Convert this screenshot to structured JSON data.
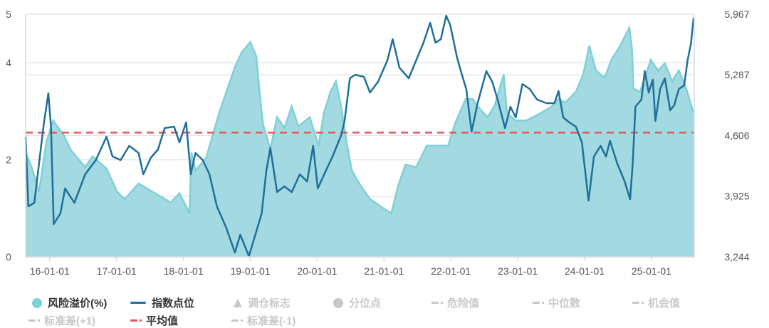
{
  "chart_data": {
    "type": "area+line",
    "x_unit": "decimal year",
    "x_tick_labels": [
      "16-01-01",
      "17-01-01",
      "18-01-01",
      "19-01-01",
      "20-01-01",
      "21-01-01",
      "22-01-01",
      "23-01-01",
      "24-01-01",
      "25-01-01"
    ],
    "x_range": [
      2015.64,
      2025.64
    ],
    "left_axis": {
      "ticks": [
        "0",
        "2",
        "4",
        "5"
      ],
      "range": [
        0,
        5
      ]
    },
    "right_axis": {
      "ticks": [
        "3,244",
        "3,925",
        "4,606",
        "5,287",
        "5,967"
      ],
      "range": [
        3244,
        5967
      ]
    },
    "grid": true,
    "colors": {
      "premium_fill": "#a3d9e0",
      "premium_line": "#7fd0d9",
      "index_line": "#1f6f9b",
      "mean_line": "#e05a5a",
      "inactive": "#c8c8c8"
    },
    "mean_value": 2.56,
    "series": [
      {
        "name": "风险溢价(%)",
        "axis": "left",
        "type": "area",
        "x": [
          2015.64,
          2015.73,
          2015.84,
          2015.95,
          2016.05,
          2016.21,
          2016.32,
          2016.53,
          2016.64,
          2016.85,
          2017.01,
          2017.12,
          2017.33,
          2017.54,
          2017.81,
          2017.94,
          2018.04,
          2018.09,
          2018.12,
          2018.18,
          2018.34,
          2018.47,
          2018.55,
          2018.66,
          2018.77,
          2018.87,
          2019.0,
          2019.09,
          2019.14,
          2019.19,
          2019.3,
          2019.4,
          2019.51,
          2019.62,
          2019.72,
          2019.89,
          2020.02,
          2020.1,
          2020.2,
          2020.28,
          2020.36,
          2020.44,
          2020.52,
          2020.63,
          2020.79,
          2020.98,
          2021.11,
          2021.21,
          2021.32,
          2021.48,
          2021.64,
          2021.8,
          2021.96,
          2022.06,
          2022.22,
          2022.33,
          2022.4,
          2022.55,
          2022.65,
          2022.79,
          2022.84,
          2022.97,
          2023.13,
          2023.34,
          2023.51,
          2023.61,
          2023.71,
          2023.87,
          2023.98,
          2024.07,
          2024.17,
          2024.3,
          2024.4,
          2024.53,
          2024.67,
          2024.71,
          2024.73,
          2024.83,
          2024.99,
          2025.1,
          2025.2,
          2025.31,
          2025.41,
          2025.52,
          2025.63
        ],
        "values": [
          2.15,
          1.85,
          1.34,
          2.37,
          2.81,
          2.51,
          2.19,
          1.85,
          2.07,
          1.82,
          1.34,
          1.19,
          1.51,
          1.34,
          1.12,
          1.31,
          1.04,
          0.9,
          2.15,
          1.78,
          2.04,
          2.66,
          3.03,
          3.47,
          3.91,
          4.21,
          4.43,
          4.13,
          3.4,
          2.74,
          2.22,
          2.88,
          2.66,
          3.1,
          2.69,
          2.88,
          2.29,
          2.96,
          3.4,
          3.62,
          3.1,
          2.37,
          1.78,
          1.51,
          1.19,
          1.01,
          0.9,
          1.46,
          1.9,
          1.85,
          2.29,
          2.29,
          2.29,
          2.74,
          3.25,
          3.25,
          3.1,
          2.88,
          3.1,
          3.76,
          2.96,
          2.81,
          2.81,
          2.96,
          3.1,
          3.25,
          3.18,
          3.4,
          3.76,
          4.35,
          3.84,
          3.69,
          4.06,
          4.35,
          4.72,
          4.28,
          3.47,
          3.4,
          4.06,
          3.84,
          3.99,
          3.62,
          3.84,
          3.47,
          2.96
        ]
      },
      {
        "name": "指数点位",
        "axis": "right",
        "type": "line",
        "x": [
          2015.64,
          2015.68,
          2015.77,
          2015.84,
          2015.91,
          2015.98,
          2016.02,
          2016.06,
          2016.16,
          2016.23,
          2016.37,
          2016.53,
          2016.69,
          2016.85,
          2016.94,
          2017.06,
          2017.19,
          2017.33,
          2017.4,
          2017.51,
          2017.62,
          2017.72,
          2017.86,
          2017.94,
          2018.04,
          2018.11,
          2018.18,
          2018.29,
          2018.39,
          2018.5,
          2018.64,
          2018.77,
          2018.85,
          2018.98,
          2019.06,
          2019.17,
          2019.24,
          2019.3,
          2019.4,
          2019.51,
          2019.62,
          2019.74,
          2019.85,
          2019.94,
          2020.01,
          2020.13,
          2020.23,
          2020.36,
          2020.41,
          2020.49,
          2020.57,
          2020.7,
          2020.79,
          2020.91,
          2021.05,
          2021.13,
          2021.18,
          2021.23,
          2021.37,
          2021.48,
          2021.59,
          2021.69,
          2021.77,
          2021.85,
          2021.93,
          2021.99,
          2022.09,
          2022.15,
          2022.23,
          2022.31,
          2022.4,
          2022.53,
          2022.62,
          2022.7,
          2022.81,
          2022.89,
          2022.97,
          2023.07,
          2023.18,
          2023.29,
          2023.43,
          2023.55,
          2023.61,
          2023.68,
          2023.77,
          2023.87,
          2023.96,
          2024.06,
          2024.14,
          2024.24,
          2024.32,
          2024.38,
          2024.49,
          2024.6,
          2024.68,
          2024.72,
          2024.76,
          2024.85,
          2024.9,
          2024.96,
          2025.02,
          2025.06,
          2025.13,
          2025.2,
          2025.28,
          2025.34,
          2025.41,
          2025.49,
          2025.54,
          2025.59,
          2025.63
        ],
        "values": [
          4593,
          3811,
          3851,
          4290,
          4729,
          5081,
          4689,
          3611,
          3731,
          4011,
          3851,
          4170,
          4330,
          4593,
          4370,
          4330,
          4490,
          4410,
          4170,
          4354,
          4450,
          4689,
          4705,
          4530,
          4753,
          4170,
          4410,
          4330,
          4170,
          3811,
          3571,
          3292,
          3492,
          3252,
          3452,
          3731,
          4210,
          4466,
          3971,
          4035,
          3971,
          4170,
          4090,
          4490,
          4011,
          4210,
          4370,
          4609,
          4769,
          5248,
          5288,
          5264,
          5088,
          5208,
          5448,
          5687,
          5528,
          5368,
          5248,
          5448,
          5647,
          5871,
          5647,
          5687,
          5951,
          5847,
          5488,
          5328,
          5128,
          4649,
          4969,
          5328,
          5208,
          5009,
          4689,
          4929,
          4809,
          5184,
          5128,
          5009,
          4969,
          4969,
          5105,
          4809,
          4753,
          4705,
          4530,
          3875,
          4370,
          4490,
          4370,
          4546,
          4290,
          4090,
          3891,
          4290,
          4929,
          5009,
          5328,
          5088,
          5232,
          4769,
          5128,
          5248,
          4889,
          4945,
          5128,
          5168,
          5448,
          5632,
          5927
        ]
      }
    ],
    "legend": [
      {
        "label": "风险溢价(%)",
        "marker": "circle",
        "active": true
      },
      {
        "label": "指数点位",
        "marker": "line",
        "active": true
      },
      {
        "label": "调仓标志",
        "marker": "triangle",
        "active": false
      },
      {
        "label": "分位点",
        "marker": "circle",
        "active": false
      },
      {
        "label": "危险值",
        "marker": "dash-dot",
        "active": false
      },
      {
        "label": "中位数",
        "marker": "dash-dot",
        "active": false
      },
      {
        "label": "机会值",
        "marker": "dash-dot",
        "active": false
      },
      {
        "label": "标准差(+1)",
        "marker": "dash-dot",
        "active": false
      },
      {
        "label": "平均值",
        "marker": "dash-dot",
        "active": true
      },
      {
        "label": "标准差(-1)",
        "marker": "dash-dot",
        "active": false
      }
    ],
    "legend_placement": "bottom"
  }
}
